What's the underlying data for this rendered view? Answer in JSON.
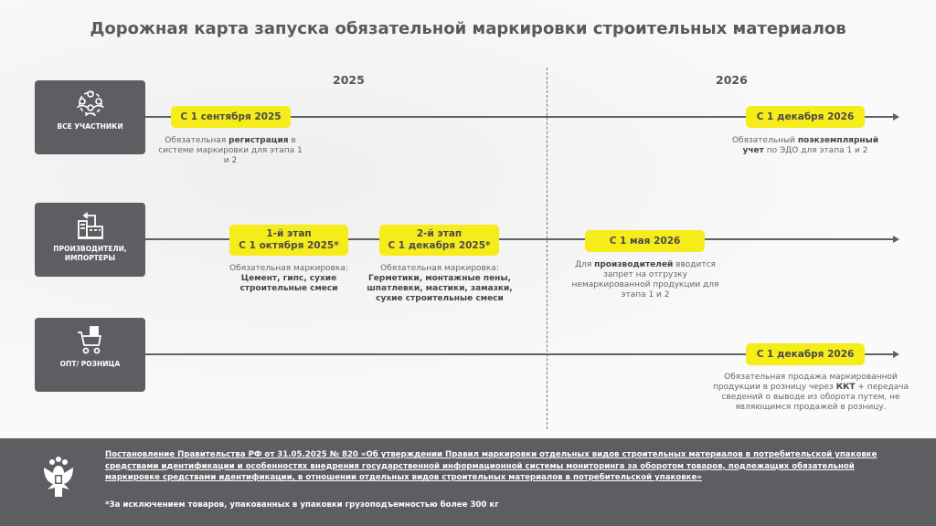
{
  "title": "Дорожная карта запуска обязательной маркировки строительных материалов",
  "years": [
    "2025",
    "2026"
  ],
  "colors": {
    "accent": "#f6ec1a",
    "box": "#5c5e62",
    "footer": "#5c5e62"
  },
  "rows": [
    {
      "category": "ВСЕ УЧАСТНИКИ",
      "icon": "people-network-icon",
      "milestones": [
        {
          "label": "С 1 сентября 2025",
          "desc_pre": "Обязательная ",
          "desc_bold": "регистрация",
          "desc_post": " в системе маркировки для этапа 1 и 2"
        },
        {
          "label": "С 1 декабря 2026",
          "desc_pre": "Обязательный ",
          "desc_bold": "поэкземплярный учет",
          "desc_post": " по ЭДО для этапа 1 и 2"
        }
      ]
    },
    {
      "category_line1": "ПРОИЗВОДИТЕЛИ,",
      "category_line2": "ИМПОРТЕРЫ",
      "icon": "factory-icon",
      "milestones": [
        {
          "label_line1": "1-й этап",
          "label_line2": "С 1 октября 2025*",
          "desc_pre": "Обязательная маркировка:",
          "desc_bold": "Цемент, гипс, сухие строительные смеси"
        },
        {
          "label_line1": "2-й этап",
          "label_line2": "С 1 декабря 2025*",
          "desc_pre": "Обязательная маркировка:",
          "desc_bold": "Герметики, монтажные пены, шпатлевки, мастики, замазки, сухие строительные смеси"
        },
        {
          "label": "С 1 мая 2026",
          "desc_pre": "Для ",
          "desc_bold": "производителей",
          "desc_post": " вводится запрет на отгрузку немаркированной продукции для этапа 1 и 2"
        }
      ]
    },
    {
      "category": "ОПТ/ РОЗНИЦА",
      "icon": "shopping-cart-icon",
      "milestones": [
        {
          "label": "С 1 декабря 2026",
          "desc_pre": "Обязательная продажа маркированной продукции в розницу через ",
          "desc_bold": "ККТ",
          "desc_post": " + передача сведений о выводе из оборота путем, не являющимся продажей в розницу."
        }
      ]
    }
  ],
  "footer": {
    "law": "Постановление Правительства РФ от 31.05.2025 № 820 «Об утверждении Правил маркировки отдельных видов строительных материалов в потребительской упаковке средствами идентификации и особенностях внедрения государственной информационной системы мониторинга за оборотом товаров, подлежащих обязательной маркировке средствами идентификации, в отношении отдельных видов строительных материалов в потребительской упаковке»",
    "note": "*За исключением товаров, упакованных в упаковки грузоподъемностью более 300 кг",
    "emblem": "coat-of-arms-russia"
  }
}
